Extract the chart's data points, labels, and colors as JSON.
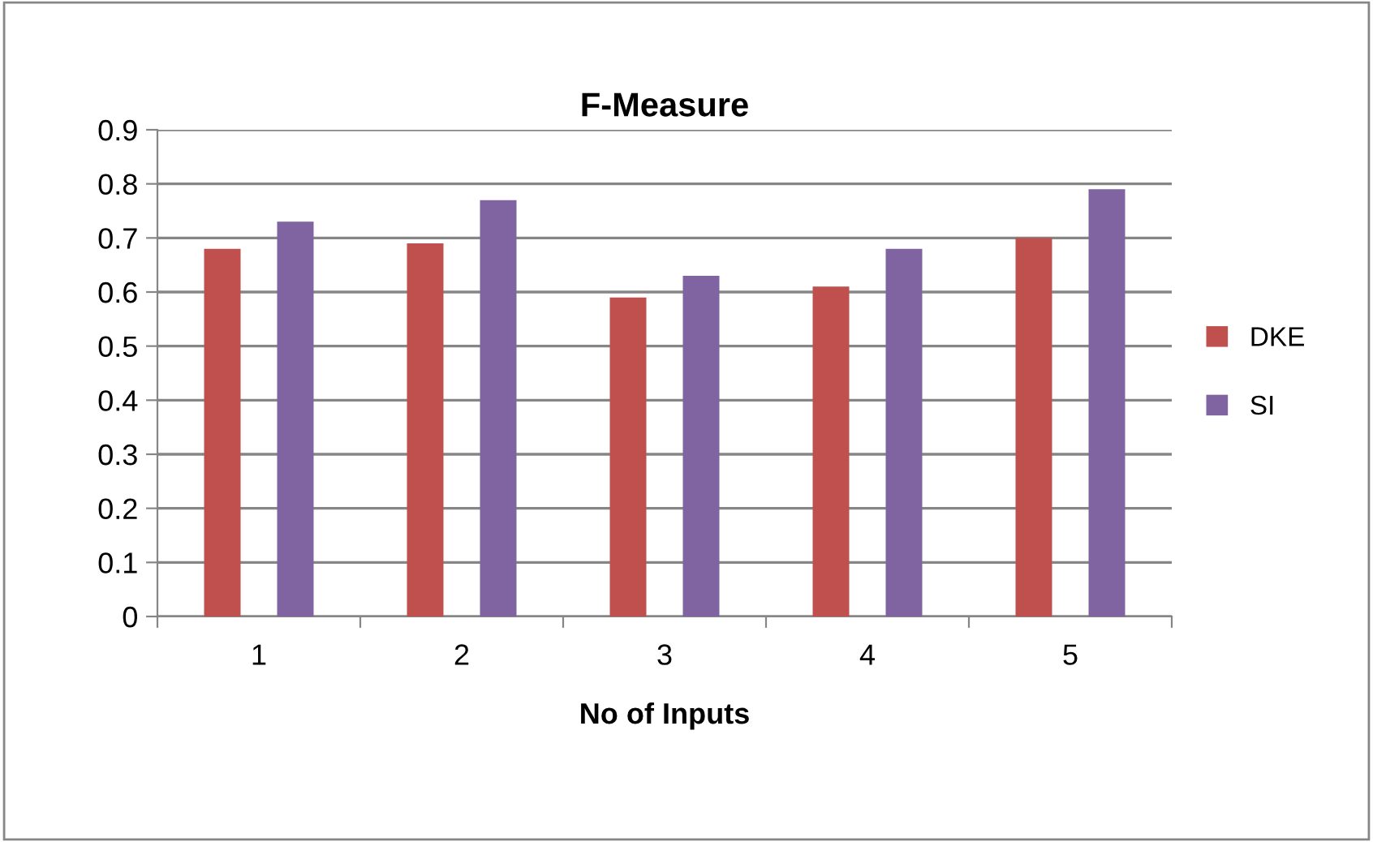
{
  "chart_data": {
    "type": "bar",
    "title": "F-Measure",
    "xlabel": "No of Inputs",
    "categories": [
      "1",
      "2",
      "3",
      "4",
      "5"
    ],
    "series": [
      {
        "name": "DKE",
        "color": "#c0504d",
        "values": [
          0.68,
          0.69,
          0.59,
          0.61,
          0.7
        ]
      },
      {
        "name": "SI",
        "color": "#8064a2",
        "values": [
          0.73,
          0.77,
          0.63,
          0.68,
          0.79
        ]
      }
    ],
    "ylim": [
      0,
      0.9
    ],
    "yticks": [
      {
        "value": 0,
        "label": "0"
      },
      0.1,
      0.2,
      0.3,
      0.4,
      0.5,
      0.6,
      0.7,
      0.8,
      0.9
    ],
    "grid": "y",
    "legend": "right"
  }
}
